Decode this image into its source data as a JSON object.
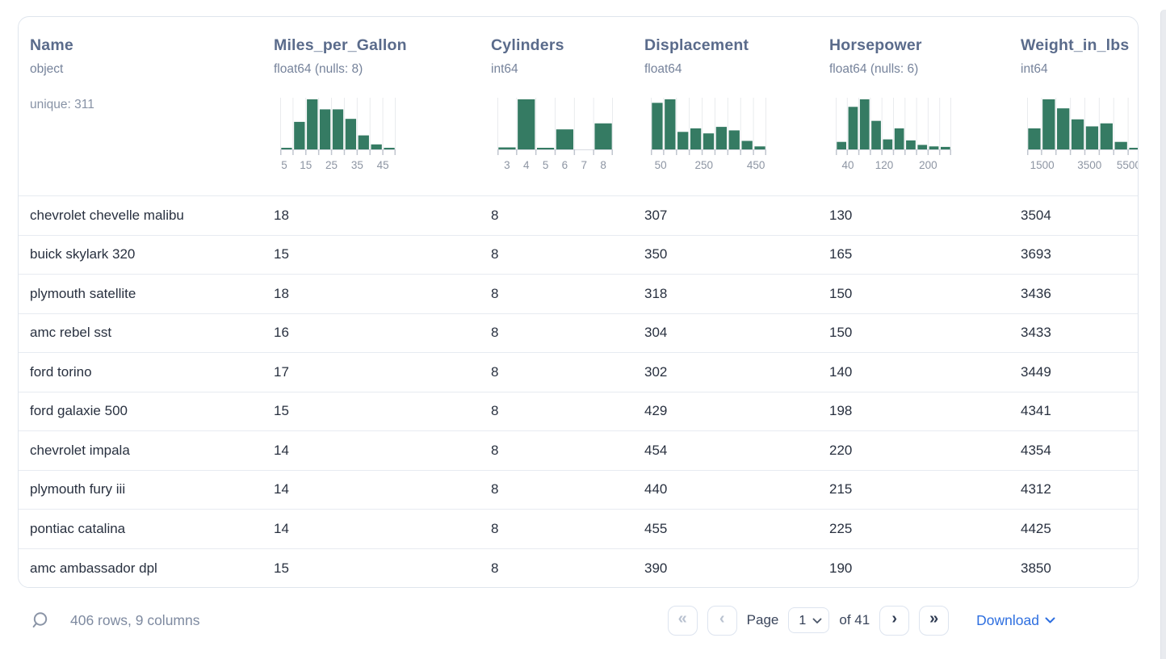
{
  "card": {
    "columns": [
      {
        "name": "Name",
        "type": "object",
        "meta": "unique: 311"
      },
      {
        "name": "Miles_per_Gallon",
        "type": "float64 (nulls: 8)",
        "hist": {
          "bars": [
            0.03,
            0.55,
            1.0,
            0.8,
            0.8,
            0.61,
            0.28,
            0.1,
            0.03
          ],
          "labels": [
            {
              "t": "5",
              "f": 0.035
            },
            {
              "t": "15",
              "f": 0.222
            },
            {
              "t": "25",
              "f": 0.444
            },
            {
              "t": "35",
              "f": 0.667
            },
            {
              "t": "45",
              "f": 0.889
            }
          ]
        }
      },
      {
        "name": "Cylinders",
        "type": "int64",
        "hist": {
          "bars": [
            0.04,
            1.0,
            0.03,
            0.4,
            0,
            0.52
          ],
          "labels": [
            {
              "t": "3",
              "f": 0.083
            },
            {
              "t": "4",
              "f": 0.25
            },
            {
              "t": "5",
              "f": 0.417
            },
            {
              "t": "6",
              "f": 0.583
            },
            {
              "t": "7",
              "f": 0.75
            },
            {
              "t": "8",
              "f": 0.917
            }
          ]
        }
      },
      {
        "name": "Displacement",
        "type": "float64",
        "hist": {
          "bars": [
            0.93,
            1.0,
            0.35,
            0.42,
            0.32,
            0.45,
            0.38,
            0.17,
            0.06
          ],
          "labels": [
            {
              "t": "50",
              "f": 0.085
            },
            {
              "t": "250",
              "f": 0.46
            },
            {
              "t": "450",
              "f": 0.91
            }
          ]
        }
      },
      {
        "name": "Horsepower",
        "type": "float64 (nulls: 6)",
        "hist": {
          "bars": [
            0.15,
            0.85,
            1.0,
            0.57,
            0.2,
            0.42,
            0.18,
            0.09,
            0.06,
            0.05
          ],
          "labels": [
            {
              "t": "40",
              "f": 0.105
            },
            {
              "t": "120",
              "f": 0.42
            },
            {
              "t": "200",
              "f": 0.8
            }
          ]
        }
      },
      {
        "name": "Weight_in_lbs",
        "type": "int64",
        "hist": {
          "bars": [
            0.42,
            1.0,
            0.82,
            0.6,
            0.46,
            0.52,
            0.15,
            0.03
          ],
          "labels": [
            {
              "t": "1500",
              "f": 0.13
            },
            {
              "t": "3500",
              "f": 0.54
            },
            {
              "t": "5500",
              "f": 0.88
            }
          ]
        }
      }
    ],
    "rows": [
      [
        "chevrolet chevelle malibu",
        "18",
        "8",
        "307",
        "130",
        "3504"
      ],
      [
        "buick skylark 320",
        "15",
        "8",
        "350",
        "165",
        "3693"
      ],
      [
        "plymouth satellite",
        "18",
        "8",
        "318",
        "150",
        "3436"
      ],
      [
        "amc rebel sst",
        "16",
        "8",
        "304",
        "150",
        "3433"
      ],
      [
        "ford torino",
        "17",
        "8",
        "302",
        "140",
        "3449"
      ],
      [
        "ford galaxie 500",
        "15",
        "8",
        "429",
        "198",
        "4341"
      ],
      [
        "chevrolet impala",
        "14",
        "8",
        "454",
        "220",
        "4354"
      ],
      [
        "plymouth fury iii",
        "14",
        "8",
        "440",
        "215",
        "4312"
      ],
      [
        "pontiac catalina",
        "14",
        "8",
        "455",
        "225",
        "4425"
      ],
      [
        "amc ambassador dpl",
        "15",
        "8",
        "390",
        "190",
        "3850"
      ]
    ]
  },
  "footer": {
    "summary": "406 rows, 9 columns",
    "page_label": "Page",
    "page_value": "1",
    "total_label": "of 41",
    "first_button": "«",
    "prev_button": "‹",
    "next_button": "›",
    "last_button": "»",
    "download_label": "Download"
  },
  "icons": {
    "search": "magnifier",
    "page_select_caret": "chevron-down",
    "download_caret": "chevron-down"
  },
  "colors": {
    "histogram_bar": "#357B63",
    "histogram_gridline": "#e9ebee",
    "histogram_baseline": "#d8dce2",
    "histogram_tick": "#c1c6cf",
    "histogram_tick_label": "#8d95a3",
    "header_text": "#5a6b8b",
    "muted_text": "#76839b",
    "cell_text": "#28303f",
    "summary_text": "#7e8aa0",
    "link_blue": "#2e6fe0",
    "card_border": "#dfe5ed",
    "row_border": "#e7ebf1",
    "disabled_chevron": "#b9c2d0",
    "enabled_chevron": "#2f3b52"
  }
}
